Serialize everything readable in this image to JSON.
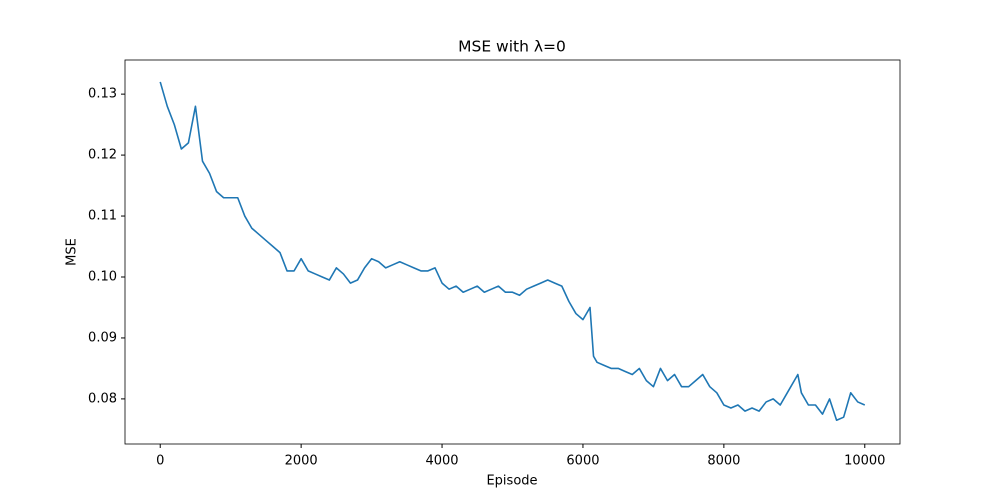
{
  "chart_data": {
    "type": "line",
    "title": "MSE with λ=0",
    "xlabel": "Episode",
    "ylabel": "MSE",
    "color": "#1f77b4",
    "x": [
      0,
      100,
      200,
      300,
      400,
      500,
      600,
      700,
      800,
      900,
      1000,
      1100,
      1200,
      1300,
      1400,
      1500,
      1600,
      1700,
      1800,
      1900,
      2000,
      2100,
      2200,
      2300,
      2400,
      2500,
      2600,
      2700,
      2800,
      2900,
      3000,
      3100,
      3200,
      3300,
      3400,
      3500,
      3600,
      3700,
      3800,
      3900,
      4000,
      4100,
      4200,
      4300,
      4400,
      4500,
      4600,
      4700,
      4800,
      4900,
      5000,
      5100,
      5200,
      5300,
      5400,
      5500,
      5600,
      5700,
      5800,
      5900,
      6000,
      6100,
      6150,
      6200,
      6300,
      6400,
      6500,
      6600,
      6700,
      6800,
      6900,
      7000,
      7100,
      7200,
      7300,
      7400,
      7500,
      7600,
      7700,
      7800,
      7900,
      8000,
      8100,
      8200,
      8300,
      8400,
      8500,
      8600,
      8700,
      8800,
      8900,
      9000,
      9050,
      9100,
      9200,
      9300,
      9400,
      9500,
      9600,
      9700,
      9800,
      9900,
      10000
    ],
    "values": [
      0.132,
      0.128,
      0.125,
      0.121,
      0.122,
      0.128,
      0.119,
      0.117,
      0.114,
      0.113,
      0.113,
      0.113,
      0.11,
      0.108,
      0.107,
      0.106,
      0.105,
      0.104,
      0.101,
      0.101,
      0.103,
      0.101,
      0.1005,
      0.1,
      0.0995,
      0.1015,
      0.1005,
      0.099,
      0.0995,
      0.1015,
      0.103,
      0.1025,
      0.1015,
      0.102,
      0.1025,
      0.102,
      0.1015,
      0.101,
      0.101,
      0.1015,
      0.099,
      0.098,
      0.0985,
      0.0975,
      0.098,
      0.0985,
      0.0975,
      0.098,
      0.0985,
      0.0975,
      0.0975,
      0.097,
      0.098,
      0.0985,
      0.099,
      0.0995,
      0.099,
      0.0985,
      0.096,
      0.094,
      0.093,
      0.095,
      0.087,
      0.086,
      0.0855,
      0.085,
      0.085,
      0.0845,
      0.084,
      0.085,
      0.083,
      0.082,
      0.085,
      0.083,
      0.084,
      0.082,
      0.082,
      0.083,
      0.084,
      0.082,
      0.081,
      0.079,
      0.0785,
      0.079,
      0.078,
      0.0785,
      0.078,
      0.0795,
      0.08,
      0.079,
      0.081,
      0.083,
      0.084,
      0.081,
      0.079,
      0.079,
      0.0775,
      0.08,
      0.0765,
      0.077,
      0.081,
      0.0795,
      0.079
    ],
    "xlim": [
      -500,
      10500
    ],
    "ylim": [
      0.0726,
      0.1356
    ],
    "xticks": [
      0,
      2000,
      4000,
      6000,
      8000,
      10000
    ],
    "yticks": [
      0.08,
      0.09,
      {
        "value": 0.1,
        "label": "0.10"
      },
      0.11,
      0.12,
      0.13
    ]
  }
}
